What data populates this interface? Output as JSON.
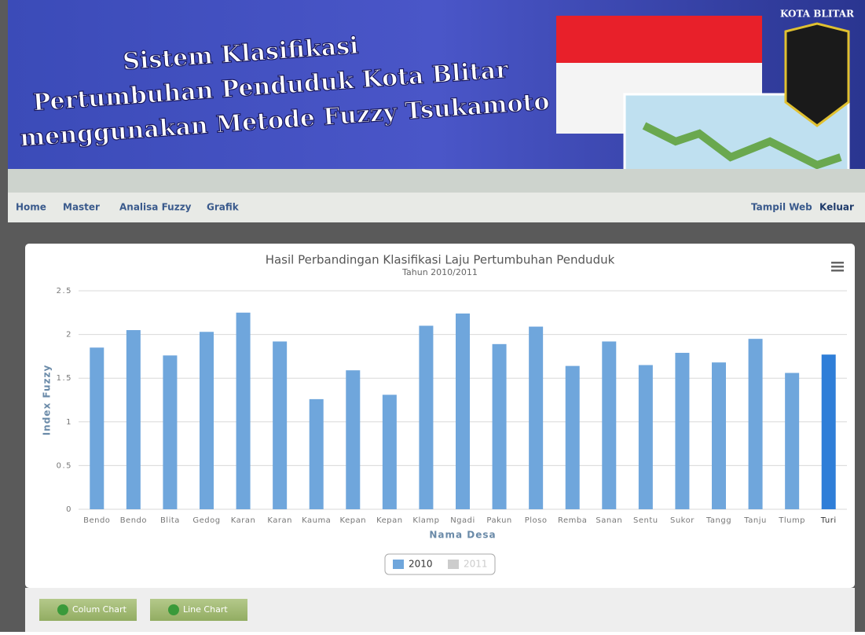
{
  "header": {
    "title_lines": [
      "Sistem Klasifikasi",
      "Pertumbuhan Penduduk Kota Blitar",
      "menggunakan Metode Fuzzy Tsukamoto"
    ],
    "emblem_text": "KOTA BLITAR"
  },
  "nav": {
    "left": [
      "Home",
      "Master",
      "Analisa Fuzzy",
      "Grafik"
    ],
    "right": [
      "Tampil Web",
      "Keluar"
    ]
  },
  "chart_data": {
    "type": "bar",
    "title": "Hasil Perbandingan Klasifikasi Laju Pertumbuhan Penduduk",
    "subtitle": "Tahun 2010/2011",
    "y_label": "Index Fuzzy",
    "x_label": "Nama Desa",
    "categories": [
      "Bendo",
      "Bendo",
      "Blita",
      "Gedog",
      "Karan",
      "Karan",
      "Kauma",
      "Kepan",
      "Kepan",
      "Klamp",
      "Ngadi",
      "Pakun",
      "Ploso",
      "Remba",
      "Sanan",
      "Sentu",
      "Sukor",
      "Tangg",
      "Tanju",
      "Tlump",
      "Turi"
    ],
    "series": [
      {
        "name": "2010",
        "color": "#6fa6dc",
        "visible": true,
        "values": [
          1.85,
          2.05,
          1.76,
          2.03,
          2.25,
          1.92,
          1.26,
          1.59,
          1.31,
          2.1,
          2.24,
          1.89,
          2.09,
          1.64,
          1.92,
          1.65,
          1.79,
          1.68,
          1.95,
          1.56,
          1.77
        ]
      },
      {
        "name": "2011",
        "color": "#d6d6d6",
        "visible": false,
        "values": [
          null,
          null,
          null,
          null,
          null,
          null,
          null,
          null,
          null,
          null,
          null,
          null,
          null,
          null,
          null,
          null,
          null,
          null,
          null,
          null,
          null
        ]
      }
    ],
    "highlight_color": "#2f7ed8",
    "highlight_index": 20,
    "ylim": [
      0,
      2.5
    ],
    "yticks": [
      0,
      0.5,
      1,
      1.5,
      2,
      2.5
    ],
    "grid": true,
    "legend": "bottom"
  },
  "buttons": [
    "Colum Chart",
    "Line Chart"
  ]
}
